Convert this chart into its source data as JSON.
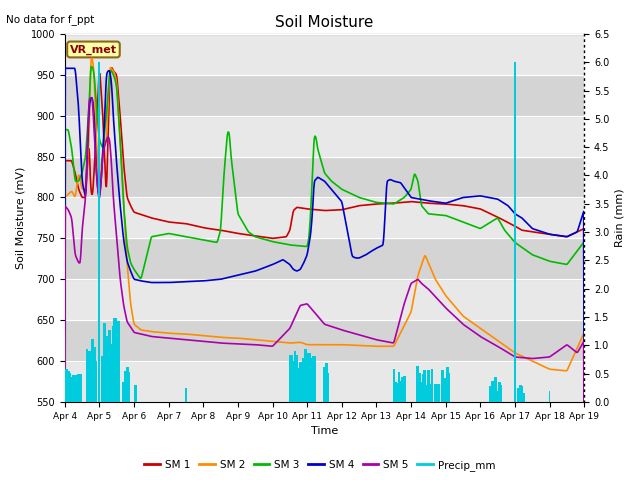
{
  "title": "Soil Moisture",
  "subtitle": "No data for f_ppt",
  "ylabel_left": "Soil Moisture (mV)",
  "ylabel_right": "Rain (mm)",
  "xlabel": "Time",
  "annotation_box": "VR_met",
  "ylim_left": [
    550,
    1000
  ],
  "ylim_right": [
    0.0,
    6.5
  ],
  "sm1_color": "#cc0000",
  "sm2_color": "#ff8c00",
  "sm3_color": "#00bb00",
  "sm4_color": "#0000cc",
  "sm5_color": "#aa00aa",
  "precip_color": "#00ccdd",
  "x_tick_labels": [
    "Apr 4",
    "Apr 5",
    "Apr 6",
    "Apr 7",
    "Apr 8",
    "Apr 9",
    "Apr 10",
    "Apr 11",
    "Apr 12",
    "Apr 13",
    "Apr 14",
    "Apr 15",
    "Apr 16",
    "Apr 17",
    "Apr 18",
    "Apr 19"
  ],
  "yticks_left": [
    550,
    600,
    650,
    700,
    750,
    800,
    850,
    900,
    950,
    1000
  ],
  "yticks_right": [
    0.0,
    0.5,
    1.0,
    1.5,
    2.0,
    2.5,
    3.0,
    3.5,
    4.0,
    4.5,
    5.0,
    5.5,
    6.0,
    6.5
  ]
}
